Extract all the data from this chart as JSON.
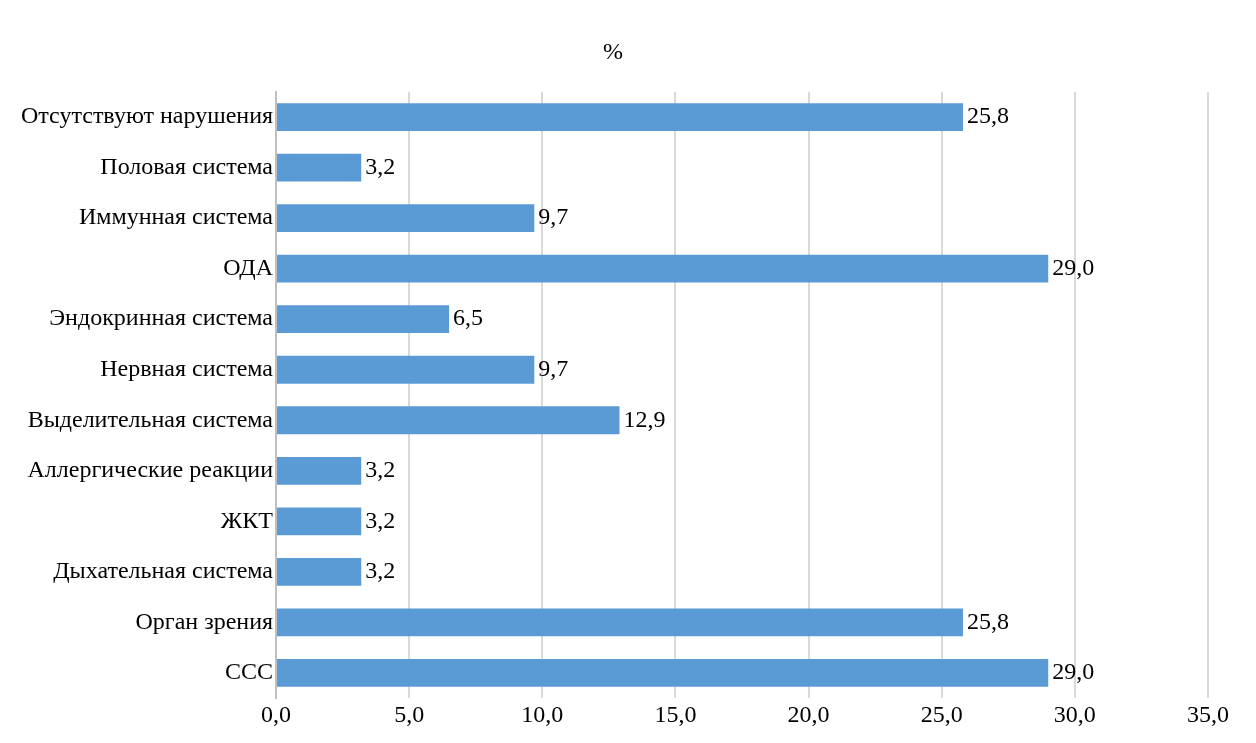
{
  "chart_data": {
    "type": "bar",
    "orientation": "horizontal",
    "title": "%",
    "categories": [
      "Отсутствуют нарушения",
      "Половая система",
      "Иммунная система",
      "ОДА",
      "Эндокринная система",
      "Нервная система",
      "Выделительная система",
      "Аллергические реакции",
      "ЖКТ",
      "Дыхательная система",
      "Орган зрения",
      "ССС"
    ],
    "values": [
      25.8,
      3.2,
      9.7,
      29.0,
      6.5,
      9.7,
      12.9,
      3.2,
      3.2,
      3.2,
      25.8,
      29.0
    ],
    "value_labels": [
      "25,8",
      "3,2",
      "9,7",
      "29,0",
      "6,5",
      "9,7",
      "12,9",
      "3,2",
      "3,2",
      "3,2",
      "25,8",
      "29,0"
    ],
    "color": "#5b9bd5",
    "xlim": [
      0,
      35
    ],
    "xticks": [
      {
        "value": 0,
        "label": "0,0"
      },
      {
        "value": 5,
        "label": "5,0"
      },
      {
        "value": 10,
        "label": "10,0"
      },
      {
        "value": 15,
        "label": "15,0"
      },
      {
        "value": 20,
        "label": "20,0"
      },
      {
        "value": 25,
        "label": "25,0"
      },
      {
        "value": 30,
        "label": "30,0"
      },
      {
        "value": 35,
        "label": "35,0"
      }
    ],
    "grid": "x",
    "legend": false
  }
}
